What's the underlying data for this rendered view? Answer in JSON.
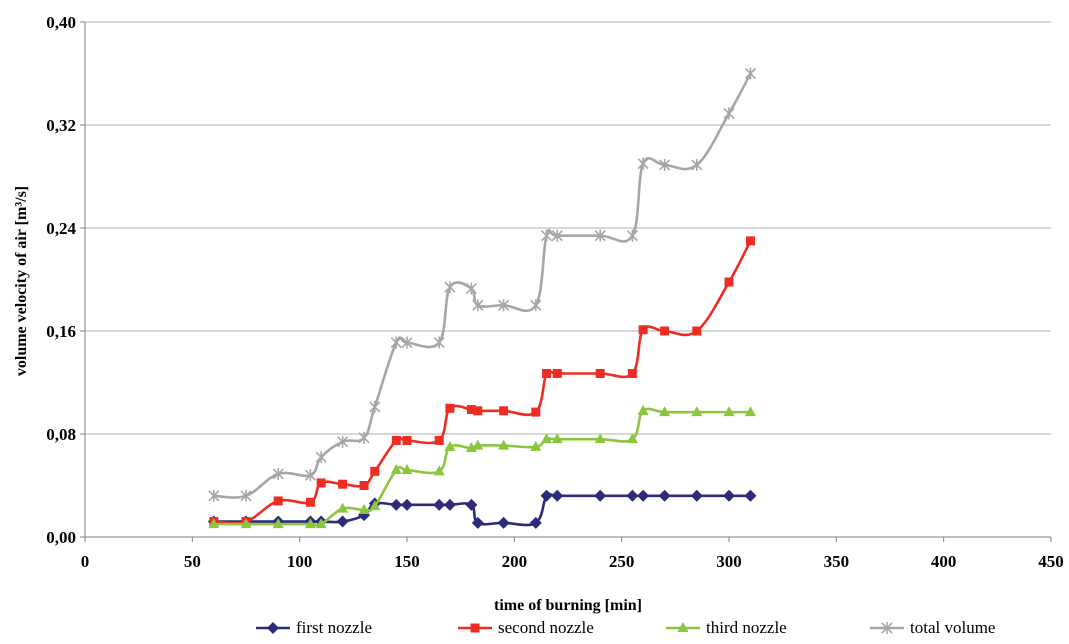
{
  "chart_data": {
    "type": "line",
    "title": "",
    "xlabel": "time of burning [min]",
    "ylabel": "volume velocity of air [m³/s]",
    "xlim": [
      0,
      450
    ],
    "ylim": [
      0,
      0.4
    ],
    "x_ticks": [
      "0",
      "50",
      "100",
      "150",
      "200",
      "250",
      "300",
      "350",
      "400",
      "450"
    ],
    "y_ticks": [
      "0,00",
      "0,08",
      "0,16",
      "0,24",
      "0,32",
      "0,40"
    ],
    "grid": "horizontal",
    "legend_position": "bottom",
    "series": [
      {
        "name": "first nozzle",
        "color": "#2e2a7a",
        "marker": "diamond",
        "points": [
          [
            60,
            0.012
          ],
          [
            75,
            0.012
          ],
          [
            90,
            0.012
          ],
          [
            105,
            0.012
          ],
          [
            110,
            0.012
          ],
          [
            120,
            0.012
          ],
          [
            130,
            0.017
          ],
          [
            135,
            0.026
          ],
          [
            145,
            0.025
          ],
          [
            150,
            0.025
          ],
          [
            165,
            0.025
          ],
          [
            170,
            0.025
          ],
          [
            180,
            0.025
          ],
          [
            183,
            0.011
          ],
          [
            195,
            0.011
          ],
          [
            210,
            0.011
          ],
          [
            215,
            0.032
          ],
          [
            220,
            0.032
          ],
          [
            240,
            0.032
          ],
          [
            255,
            0.032
          ],
          [
            260,
            0.032
          ],
          [
            270,
            0.032
          ],
          [
            285,
            0.032
          ],
          [
            300,
            0.032
          ],
          [
            310,
            0.032
          ]
        ]
      },
      {
        "name": "second nozzle",
        "color": "#ee2c24",
        "marker": "square",
        "points": [
          [
            60,
            0.012
          ],
          [
            75,
            0.012
          ],
          [
            90,
            0.028
          ],
          [
            105,
            0.027
          ],
          [
            110,
            0.042
          ],
          [
            120,
            0.041
          ],
          [
            130,
            0.04
          ],
          [
            135,
            0.051
          ],
          [
            145,
            0.075
          ],
          [
            150,
            0.075
          ],
          [
            165,
            0.075
          ],
          [
            170,
            0.1
          ],
          [
            180,
            0.099
          ],
          [
            183,
            0.098
          ],
          [
            195,
            0.098
          ],
          [
            210,
            0.097
          ],
          [
            215,
            0.127
          ],
          [
            220,
            0.127
          ],
          [
            240,
            0.127
          ],
          [
            255,
            0.127
          ],
          [
            260,
            0.161
          ],
          [
            270,
            0.16
          ],
          [
            285,
            0.16
          ],
          [
            300,
            0.198
          ],
          [
            310,
            0.23
          ]
        ]
      },
      {
        "name": "third nozzle",
        "color": "#8cc63f",
        "marker": "triangle",
        "points": [
          [
            60,
            0.01
          ],
          [
            75,
            0.01
          ],
          [
            90,
            0.01
          ],
          [
            105,
            0.01
          ],
          [
            110,
            0.01
          ],
          [
            120,
            0.022
          ],
          [
            130,
            0.021
          ],
          [
            135,
            0.024
          ],
          [
            145,
            0.052
          ],
          [
            150,
            0.052
          ],
          [
            165,
            0.051
          ],
          [
            170,
            0.07
          ],
          [
            180,
            0.069
          ],
          [
            183,
            0.071
          ],
          [
            195,
            0.071
          ],
          [
            210,
            0.07
          ],
          [
            215,
            0.076
          ],
          [
            220,
            0.076
          ],
          [
            240,
            0.076
          ],
          [
            255,
            0.076
          ],
          [
            260,
            0.098
          ],
          [
            270,
            0.097
          ],
          [
            285,
            0.097
          ],
          [
            300,
            0.097
          ],
          [
            310,
            0.097
          ]
        ]
      },
      {
        "name": "total volume",
        "color": "#a6a6a6",
        "marker": "star",
        "points": [
          [
            60,
            0.032
          ],
          [
            75,
            0.032
          ],
          [
            90,
            0.049
          ],
          [
            105,
            0.048
          ],
          [
            110,
            0.062
          ],
          [
            120,
            0.074
          ],
          [
            130,
            0.077
          ],
          [
            135,
            0.101
          ],
          [
            145,
            0.151
          ],
          [
            150,
            0.151
          ],
          [
            165,
            0.151
          ],
          [
            170,
            0.194
          ],
          [
            180,
            0.193
          ],
          [
            183,
            0.18
          ],
          [
            195,
            0.18
          ],
          [
            210,
            0.18
          ],
          [
            215,
            0.234
          ],
          [
            220,
            0.234
          ],
          [
            240,
            0.234
          ],
          [
            255,
            0.234
          ],
          [
            260,
            0.29
          ],
          [
            270,
            0.289
          ],
          [
            285,
            0.289
          ],
          [
            300,
            0.329
          ],
          [
            310,
            0.36
          ]
        ]
      }
    ]
  }
}
